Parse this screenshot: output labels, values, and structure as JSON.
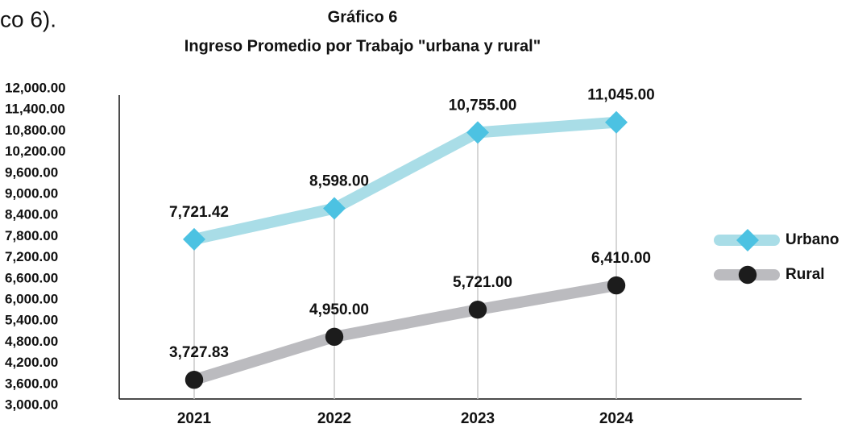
{
  "page_text": "co 6).",
  "chart_data": {
    "type": "line",
    "title": "Gráfico 6",
    "subtitle": "Ingreso Promedio por Trabajo \"urbana y rural\"",
    "categories": [
      "2021",
      "2022",
      "2023",
      "2024"
    ],
    "series": [
      {
        "name": "Urbano",
        "color": "#a9dde7",
        "marker_color": "#4cc2e2",
        "marker": "diamond",
        "values": [
          7721.42,
          8598,
          10755,
          11045
        ],
        "value_labels": [
          "7,721.42",
          "8,598.00",
          "10,755.00",
          "11,045.00"
        ]
      },
      {
        "name": "Rural",
        "color": "#bbbbbf",
        "marker_color": "#1c1c1c",
        "marker": "circle",
        "values": [
          3727.83,
          4950,
          5721,
          6410
        ],
        "value_labels": [
          "3,727.83",
          "4,950.00",
          "5,721.00",
          "6,410.00"
        ]
      }
    ],
    "ylim": [
      3000,
      12000
    ],
    "yticks": [
      {
        "value": 3000,
        "label": "3,000.00"
      },
      {
        "value": 3600,
        "label": "3,600.00"
      },
      {
        "value": 4200,
        "label": "4,200.00"
      },
      {
        "value": 4800,
        "label": "4,800.00"
      },
      {
        "value": 5400,
        "label": "5,400.00"
      },
      {
        "value": 6000,
        "label": "6,000.00"
      },
      {
        "value": 6600,
        "label": "6,600.00"
      },
      {
        "value": 7200,
        "label": "7,200.00"
      },
      {
        "value": 7800,
        "label": "7,800.00"
      },
      {
        "value": 8400,
        "label": "8,400.00"
      },
      {
        "value": 9000,
        "label": "9,000.00"
      },
      {
        "value": 9600,
        "label": "9,600.00"
      },
      {
        "value": 10200,
        "label": "10,200.00"
      },
      {
        "value": 10800,
        "label": "10,800.00"
      },
      {
        "value": 11400,
        "label": "11,400.00"
      },
      {
        "value": 12000,
        "label": "12,000.00"
      }
    ],
    "grid": false,
    "legend": "right"
  }
}
